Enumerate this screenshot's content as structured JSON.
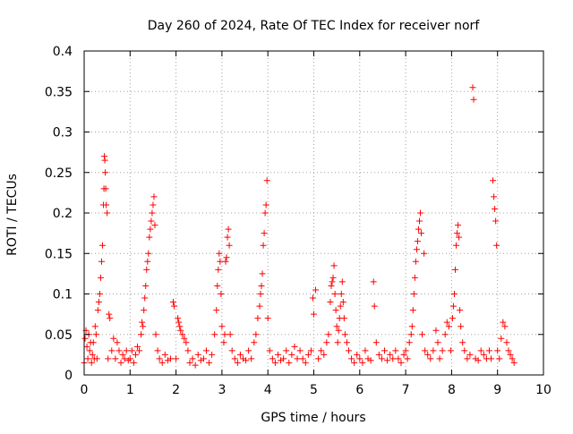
{
  "chart_data": {
    "type": "scatter",
    "title": "Day 260 of 2024, Rate Of TEC Index for receiver norf",
    "xlabel": "GPS time / hours",
    "ylabel": "ROTI / TECUs",
    "xlim": [
      0,
      10
    ],
    "ylim": [
      0,
      0.4
    ],
    "x_ticks": [
      0,
      1,
      2,
      3,
      4,
      5,
      6,
      7,
      8,
      9,
      10
    ],
    "x_tick_labels": [
      "0",
      "1",
      "2",
      "3",
      "4",
      "5",
      "6",
      "7",
      "8",
      "9",
      "10"
    ],
    "y_ticks": [
      0,
      0.05,
      0.1,
      0.15,
      0.2,
      0.25,
      0.3,
      0.35,
      0.4
    ],
    "y_tick_labels": [
      "0",
      "0.05",
      "0.1",
      "0.15",
      "0.2",
      "0.25",
      "0.3",
      "0.35",
      "0.4"
    ],
    "grid": true,
    "marker": "+",
    "color": "#ff0000",
    "series": [
      {
        "name": "ROTI",
        "points": [
          [
            0.0,
            0.015
          ],
          [
            0.02,
            0.045
          ],
          [
            0.04,
            0.055
          ],
          [
            0.06,
            0.035
          ],
          [
            0.08,
            0.02
          ],
          [
            0.1,
            0.05
          ],
          [
            0.12,
            0.03
          ],
          [
            0.14,
            0.04
          ],
          [
            0.16,
            0.015
          ],
          [
            0.18,
            0.025
          ],
          [
            0.2,
            0.04
          ],
          [
            0.22,
            0.02
          ],
          [
            0.24,
            0.06
          ],
          [
            0.26,
            0.05
          ],
          [
            0.28,
            0.02
          ],
          [
            0.3,
            0.08
          ],
          [
            0.32,
            0.09
          ],
          [
            0.34,
            0.1
          ],
          [
            0.36,
            0.12
          ],
          [
            0.38,
            0.14
          ],
          [
            0.4,
            0.16
          ],
          [
            0.42,
            0.21
          ],
          [
            0.43,
            0.23
          ],
          [
            0.44,
            0.27
          ],
          [
            0.45,
            0.265
          ],
          [
            0.46,
            0.25
          ],
          [
            0.47,
            0.23
          ],
          [
            0.48,
            0.21
          ],
          [
            0.5,
            0.2
          ],
          [
            0.52,
            0.02
          ],
          [
            0.54,
            0.075
          ],
          [
            0.56,
            0.07
          ],
          [
            0.6,
            0.03
          ],
          [
            0.64,
            0.045
          ],
          [
            0.68,
            0.02
          ],
          [
            0.72,
            0.04
          ],
          [
            0.76,
            0.03
          ],
          [
            0.8,
            0.015
          ],
          [
            0.84,
            0.025
          ],
          [
            0.88,
            0.02
          ],
          [
            0.92,
            0.03
          ],
          [
            0.96,
            0.018
          ],
          [
            1.0,
            0.02
          ],
          [
            1.04,
            0.03
          ],
          [
            1.08,
            0.015
          ],
          [
            1.12,
            0.025
          ],
          [
            1.16,
            0.035
          ],
          [
            1.2,
            0.03
          ],
          [
            1.24,
            0.05
          ],
          [
            1.26,
            0.065
          ],
          [
            1.28,
            0.06
          ],
          [
            1.3,
            0.08
          ],
          [
            1.32,
            0.095
          ],
          [
            1.34,
            0.11
          ],
          [
            1.36,
            0.13
          ],
          [
            1.38,
            0.14
          ],
          [
            1.4,
            0.15
          ],
          [
            1.42,
            0.17
          ],
          [
            1.44,
            0.18
          ],
          [
            1.46,
            0.19
          ],
          [
            1.48,
            0.2
          ],
          [
            1.5,
            0.21
          ],
          [
            1.52,
            0.22
          ],
          [
            1.54,
            0.185
          ],
          [
            1.56,
            0.05
          ],
          [
            1.6,
            0.03
          ],
          [
            1.64,
            0.02
          ],
          [
            1.7,
            0.015
          ],
          [
            1.76,
            0.025
          ],
          [
            1.82,
            0.018
          ],
          [
            1.88,
            0.02
          ],
          [
            1.94,
            0.09
          ],
          [
            1.96,
            0.085
          ],
          [
            2.0,
            0.02
          ],
          [
            2.04,
            0.07
          ],
          [
            2.06,
            0.065
          ],
          [
            2.08,
            0.06
          ],
          [
            2.1,
            0.055
          ],
          [
            2.14,
            0.05
          ],
          [
            2.18,
            0.045
          ],
          [
            2.22,
            0.04
          ],
          [
            2.26,
            0.03
          ],
          [
            2.3,
            0.015
          ],
          [
            2.36,
            0.02
          ],
          [
            2.42,
            0.012
          ],
          [
            2.48,
            0.025
          ],
          [
            2.54,
            0.018
          ],
          [
            2.6,
            0.02
          ],
          [
            2.66,
            0.03
          ],
          [
            2.72,
            0.015
          ],
          [
            2.78,
            0.025
          ],
          [
            2.84,
            0.05
          ],
          [
            2.88,
            0.08
          ],
          [
            2.9,
            0.11
          ],
          [
            2.92,
            0.13
          ],
          [
            2.94,
            0.15
          ],
          [
            2.96,
            0.14
          ],
          [
            2.98,
            0.1
          ],
          [
            3.0,
            0.06
          ],
          [
            3.04,
            0.04
          ],
          [
            3.06,
            0.05
          ],
          [
            3.08,
            0.14
          ],
          [
            3.1,
            0.145
          ],
          [
            3.12,
            0.17
          ],
          [
            3.14,
            0.18
          ],
          [
            3.16,
            0.16
          ],
          [
            3.18,
            0.05
          ],
          [
            3.22,
            0.03
          ],
          [
            3.28,
            0.02
          ],
          [
            3.34,
            0.015
          ],
          [
            3.4,
            0.025
          ],
          [
            3.46,
            0.02
          ],
          [
            3.52,
            0.018
          ],
          [
            3.58,
            0.03
          ],
          [
            3.64,
            0.02
          ],
          [
            3.7,
            0.04
          ],
          [
            3.74,
            0.05
          ],
          [
            3.78,
            0.07
          ],
          [
            3.82,
            0.085
          ],
          [
            3.84,
            0.1
          ],
          [
            3.86,
            0.11
          ],
          [
            3.88,
            0.125
          ],
          [
            3.9,
            0.16
          ],
          [
            3.92,
            0.175
          ],
          [
            3.94,
            0.2
          ],
          [
            3.96,
            0.21
          ],
          [
            3.98,
            0.24
          ],
          [
            4.0,
            0.07
          ],
          [
            4.04,
            0.03
          ],
          [
            4.1,
            0.02
          ],
          [
            4.16,
            0.015
          ],
          [
            4.22,
            0.025
          ],
          [
            4.28,
            0.018
          ],
          [
            4.34,
            0.02
          ],
          [
            4.4,
            0.03
          ],
          [
            4.46,
            0.015
          ],
          [
            4.52,
            0.025
          ],
          [
            4.58,
            0.035
          ],
          [
            4.64,
            0.02
          ],
          [
            4.7,
            0.03
          ],
          [
            4.76,
            0.02
          ],
          [
            4.82,
            0.015
          ],
          [
            4.88,
            0.025
          ],
          [
            4.94,
            0.03
          ],
          [
            4.98,
            0.095
          ],
          [
            5.0,
            0.075
          ],
          [
            5.04,
            0.105
          ],
          [
            5.1,
            0.02
          ],
          [
            5.16,
            0.03
          ],
          [
            5.22,
            0.025
          ],
          [
            5.28,
            0.04
          ],
          [
            5.32,
            0.05
          ],
          [
            5.36,
            0.09
          ],
          [
            5.38,
            0.11
          ],
          [
            5.4,
            0.115
          ],
          [
            5.42,
            0.12
          ],
          [
            5.44,
            0.135
          ],
          [
            5.46,
            0.1
          ],
          [
            5.48,
            0.08
          ],
          [
            5.5,
            0.06
          ],
          [
            5.52,
            0.04
          ],
          [
            5.54,
            0.055
          ],
          [
            5.56,
            0.07
          ],
          [
            5.58,
            0.085
          ],
          [
            5.6,
            0.1
          ],
          [
            5.62,
            0.115
          ],
          [
            5.64,
            0.09
          ],
          [
            5.66,
            0.07
          ],
          [
            5.68,
            0.05
          ],
          [
            5.72,
            0.04
          ],
          [
            5.76,
            0.03
          ],
          [
            5.82,
            0.02
          ],
          [
            5.88,
            0.015
          ],
          [
            5.94,
            0.025
          ],
          [
            6.0,
            0.02
          ],
          [
            6.06,
            0.015
          ],
          [
            6.12,
            0.03
          ],
          [
            6.18,
            0.02
          ],
          [
            6.24,
            0.018
          ],
          [
            6.3,
            0.115
          ],
          [
            6.32,
            0.085
          ],
          [
            6.36,
            0.04
          ],
          [
            6.42,
            0.025
          ],
          [
            6.48,
            0.02
          ],
          [
            6.54,
            0.03
          ],
          [
            6.6,
            0.018
          ],
          [
            6.66,
            0.025
          ],
          [
            6.72,
            0.02
          ],
          [
            6.78,
            0.03
          ],
          [
            6.84,
            0.02
          ],
          [
            6.9,
            0.015
          ],
          [
            6.96,
            0.025
          ],
          [
            7.0,
            0.03
          ],
          [
            7.04,
            0.02
          ],
          [
            7.08,
            0.04
          ],
          [
            7.12,
            0.05
          ],
          [
            7.14,
            0.06
          ],
          [
            7.16,
            0.08
          ],
          [
            7.18,
            0.1
          ],
          [
            7.2,
            0.12
          ],
          [
            7.22,
            0.14
          ],
          [
            7.24,
            0.155
          ],
          [
            7.26,
            0.165
          ],
          [
            7.28,
            0.18
          ],
          [
            7.3,
            0.19
          ],
          [
            7.32,
            0.2
          ],
          [
            7.34,
            0.175
          ],
          [
            7.36,
            0.05
          ],
          [
            7.4,
            0.15
          ],
          [
            7.42,
            0.03
          ],
          [
            7.48,
            0.025
          ],
          [
            7.54,
            0.02
          ],
          [
            7.6,
            0.03
          ],
          [
            7.66,
            0.055
          ],
          [
            7.7,
            0.04
          ],
          [
            7.74,
            0.02
          ],
          [
            7.8,
            0.03
          ],
          [
            7.86,
            0.05
          ],
          [
            7.9,
            0.065
          ],
          [
            7.94,
            0.06
          ],
          [
            7.98,
            0.03
          ],
          [
            8.02,
            0.07
          ],
          [
            8.04,
            0.085
          ],
          [
            8.06,
            0.1
          ],
          [
            8.08,
            0.13
          ],
          [
            8.1,
            0.16
          ],
          [
            8.12,
            0.175
          ],
          [
            8.14,
            0.185
          ],
          [
            8.16,
            0.17
          ],
          [
            8.18,
            0.08
          ],
          [
            8.2,
            0.06
          ],
          [
            8.24,
            0.04
          ],
          [
            8.28,
            0.03
          ],
          [
            8.34,
            0.02
          ],
          [
            8.4,
            0.025
          ],
          [
            8.46,
            0.355
          ],
          [
            8.48,
            0.34
          ],
          [
            8.52,
            0.02
          ],
          [
            8.58,
            0.018
          ],
          [
            8.64,
            0.03
          ],
          [
            8.7,
            0.025
          ],
          [
            8.76,
            0.02
          ],
          [
            8.82,
            0.03
          ],
          [
            8.86,
            0.02
          ],
          [
            8.9,
            0.24
          ],
          [
            8.92,
            0.22
          ],
          [
            8.94,
            0.205
          ],
          [
            8.96,
            0.19
          ],
          [
            8.98,
            0.16
          ],
          [
            9.0,
            0.03
          ],
          [
            9.04,
            0.02
          ],
          [
            9.08,
            0.045
          ],
          [
            9.12,
            0.065
          ],
          [
            9.16,
            0.06
          ],
          [
            9.2,
            0.04
          ],
          [
            9.24,
            0.03
          ],
          [
            9.28,
            0.025
          ],
          [
            9.32,
            0.02
          ],
          [
            9.36,
            0.015
          ]
        ]
      }
    ]
  }
}
